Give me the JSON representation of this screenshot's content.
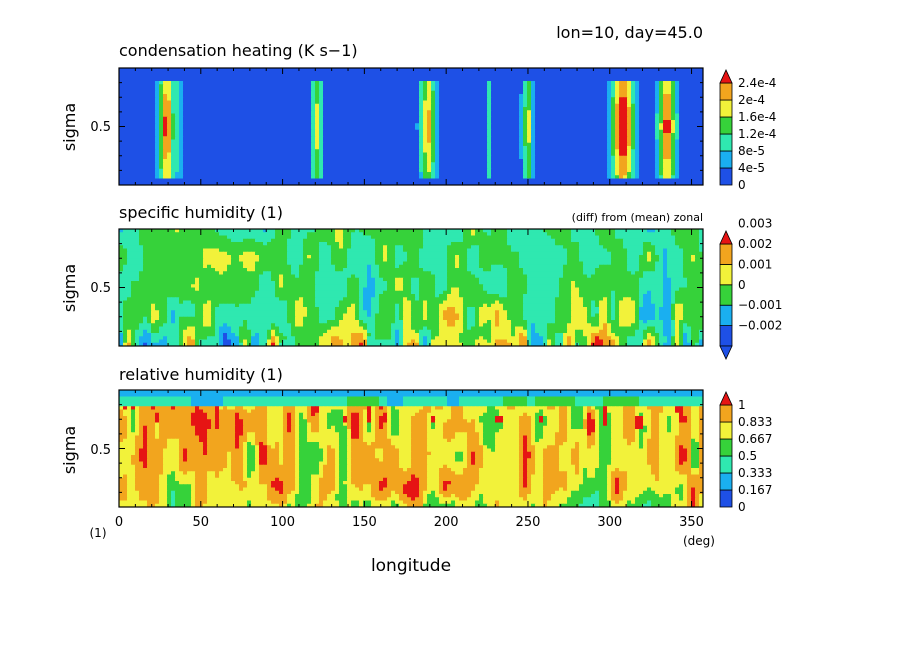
{
  "header": {
    "info": "lon=10, day=45.0"
  },
  "panels": [
    {
      "title": "condensation heating (K s−1)",
      "ylabel": "sigma",
      "ytick": "0.5",
      "note": "",
      "colorbar": [
        "0",
        "4e-5",
        "8e-5",
        "1.2e-4",
        "1.6e-4",
        "2e-4",
        "2.4e-4"
      ]
    },
    {
      "title": "specific humidity (1)",
      "ylabel": "sigma",
      "ytick": "0.5",
      "note": "(diff) from (mean) zonal",
      "colorbar": [
        "−0.002",
        "−0.001",
        "0",
        "0.001",
        "0.002",
        "0.003"
      ]
    },
    {
      "title": "relative humidity (1)",
      "ylabel": "sigma",
      "ytick": "0.5",
      "note": "",
      "colorbar": [
        "0",
        "0.167",
        "0.333",
        "0.5",
        "0.667",
        "0.833",
        "1"
      ]
    }
  ],
  "xaxis": {
    "label": "longitude",
    "ticks": [
      "0",
      "50",
      "100",
      "150",
      "200",
      "250",
      "300",
      "350"
    ],
    "unit": "(deg)",
    "corner_note": "(1)"
  },
  "colors": {
    "levels": [
      "#1e50e6",
      "#1aaff0",
      "#2fe8b0",
      "#36d23a",
      "#f2f23a",
      "#f2a51e",
      "#e61414"
    ]
  },
  "chart_data": [
    {
      "type": "heatmap",
      "title": "condensation heating (K s−1)",
      "xlabel": "longitude",
      "ylabel": "sigma",
      "xlim": [
        0,
        357
      ],
      "ylim": [
        0.1,
        0.9
      ],
      "colorbar_ticks": [
        0,
        4e-05,
        8e-05,
        0.00012,
        0.00016,
        0.0002,
        0.00024
      ],
      "bands": [
        {
          "lon": 29,
          "width": 6,
          "peak_level": 5
        },
        {
          "lon": 36,
          "width": 3,
          "peak_level": 1
        },
        {
          "lon": 121,
          "width": 4,
          "peak_level": 3
        },
        {
          "lon": 189,
          "width": 6,
          "peak_level": 4
        },
        {
          "lon": 226,
          "width": 2,
          "peak_level": 1
        },
        {
          "lon": 250,
          "width": 4,
          "peak_level": 3
        },
        {
          "lon": 308,
          "width": 9,
          "peak_level": 6
        },
        {
          "lon": 335,
          "width": 7,
          "peak_level": 5
        }
      ]
    },
    {
      "type": "heatmap",
      "title": "specific humidity (1)",
      "subtitle": "(diff) from (mean) zonal",
      "xlabel": "longitude",
      "ylabel": "sigma",
      "xlim": [
        0,
        357
      ],
      "ylim": [
        0.1,
        0.9
      ],
      "colorbar_ticks": [
        -0.002,
        -0.001,
        0,
        0.001,
        0.002,
        0.003
      ]
    },
    {
      "type": "heatmap",
      "title": "relative humidity (1)",
      "xlabel": "longitude",
      "ylabel": "sigma",
      "xlim": [
        0,
        357
      ],
      "ylim": [
        0.1,
        0.9
      ],
      "colorbar_ticks": [
        0,
        0.167,
        0.333,
        0.5,
        0.667,
        0.833,
        1
      ]
    }
  ]
}
